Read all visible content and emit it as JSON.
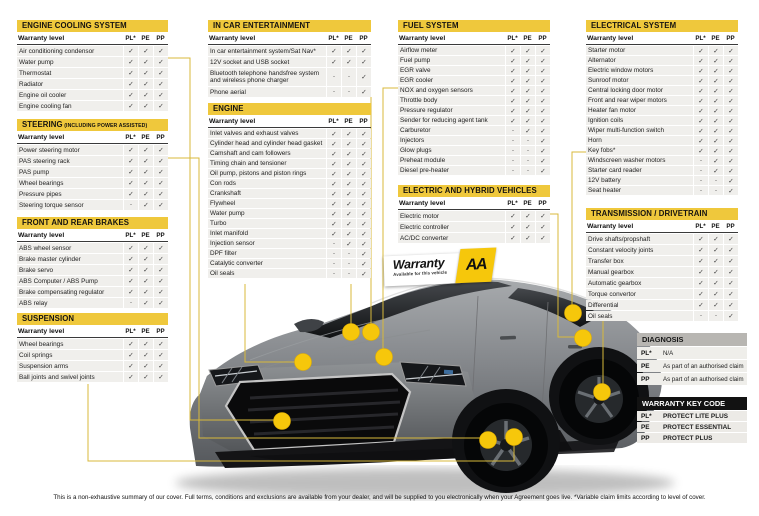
{
  "colors": {
    "accent_yellow": "#EFC83C",
    "dot_yellow": "#F6C70B",
    "line_yellow": "#D8B93B",
    "diagnosis_header": "#B8B6B2",
    "keycode_header": "#121212",
    "row_bg": "#F0EFEC"
  },
  "col_header": "Warranty level",
  "columns": [
    "PL*",
    "PE",
    "PP"
  ],
  "tables": [
    {
      "id": "engine-cooling-system",
      "title": "ENGINE COOLING SYSTEM",
      "rows": [
        {
          "label": "Air conditioning condensor",
          "marks": [
            "✓",
            "✓",
            "✓"
          ]
        },
        {
          "label": "Water pump",
          "marks": [
            "✓",
            "✓",
            "✓"
          ]
        },
        {
          "label": "Thermostat",
          "marks": [
            "✓",
            "✓",
            "✓"
          ]
        },
        {
          "label": "Radiator",
          "marks": [
            "✓",
            "✓",
            "✓"
          ]
        },
        {
          "label": "Engine oil cooler",
          "marks": [
            "✓",
            "✓",
            "✓"
          ]
        },
        {
          "label": "Engine cooling fan",
          "marks": [
            "✓",
            "✓",
            "✓"
          ]
        }
      ]
    },
    {
      "id": "steering",
      "title": "STEERING",
      "suffix": "(INCLUDING POWER ASSISTED)",
      "rows": [
        {
          "label": "Power steering motor",
          "marks": [
            "✓",
            "✓",
            "✓"
          ]
        },
        {
          "label": "PAS steering rack",
          "marks": [
            "✓",
            "✓",
            "✓"
          ]
        },
        {
          "label": "PAS pump",
          "marks": [
            "✓",
            "✓",
            "✓"
          ]
        },
        {
          "label": "Wheel bearings",
          "marks": [
            "✓",
            "✓",
            "✓"
          ]
        },
        {
          "label": "Pressure pipes",
          "marks": [
            "✓",
            "✓",
            "✓"
          ]
        },
        {
          "label": "Steering torque sensor",
          "marks": [
            "-",
            "✓",
            "✓"
          ]
        }
      ]
    },
    {
      "id": "front-and-rear-brakes",
      "title": "FRONT AND REAR BRAKES",
      "rows": [
        {
          "label": "ABS wheel sensor",
          "marks": [
            "✓",
            "✓",
            "✓"
          ]
        },
        {
          "label": "Brake master cylinder",
          "marks": [
            "✓",
            "✓",
            "✓"
          ]
        },
        {
          "label": "Brake servo",
          "marks": [
            "✓",
            "✓",
            "✓"
          ]
        },
        {
          "label": "ABS Computer / ABS Pump",
          "marks": [
            "✓",
            "✓",
            "✓"
          ]
        },
        {
          "label": "Brake compensating regulator",
          "marks": [
            "✓",
            "✓",
            "✓"
          ]
        },
        {
          "label": "ABS relay",
          "marks": [
            "-",
            "✓",
            "✓"
          ]
        }
      ]
    },
    {
      "id": "suspension",
      "title": "SUSPENSION",
      "rows": [
        {
          "label": "Wheel bearings",
          "marks": [
            "✓",
            "✓",
            "✓"
          ]
        },
        {
          "label": "Coil springs",
          "marks": [
            "✓",
            "✓",
            "✓"
          ]
        },
        {
          "label": "Suspension arms",
          "marks": [
            "✓",
            "✓",
            "✓"
          ]
        },
        {
          "label": "Ball joints and swivel joints",
          "marks": [
            "✓",
            "✓",
            "✓"
          ]
        }
      ]
    },
    {
      "id": "in-car-entertainment",
      "title": "IN CAR ENTERTAINMENT",
      "rows": [
        {
          "label": "In car entertainment system/Sat Nav*",
          "marks": [
            "✓",
            "✓",
            "✓"
          ]
        },
        {
          "label": "12V socket and USB socket",
          "marks": [
            "✓",
            "✓",
            "✓"
          ]
        },
        {
          "label": "Bluetooth telephone handsfree system and wireless phone charger",
          "marks": [
            "-",
            "-",
            "✓"
          ]
        },
        {
          "label": "Phone aerial",
          "marks": [
            "-",
            "-",
            "✓"
          ]
        }
      ]
    },
    {
      "id": "engine",
      "title": "ENGINE",
      "rows": [
        {
          "label": "Inlet valves and exhaust valves",
          "marks": [
            "✓",
            "✓",
            "✓"
          ]
        },
        {
          "label": "Cylinder head and cylinder head gasket",
          "marks": [
            "✓",
            "✓",
            "✓"
          ]
        },
        {
          "label": "Camshaft and cam followers",
          "marks": [
            "✓",
            "✓",
            "✓"
          ]
        },
        {
          "label": "Timing chain and tensioner",
          "marks": [
            "✓",
            "✓",
            "✓"
          ]
        },
        {
          "label": "Oil pump, pistons and piston rings",
          "marks": [
            "✓",
            "✓",
            "✓"
          ]
        },
        {
          "label": "Con rods",
          "marks": [
            "✓",
            "✓",
            "✓"
          ]
        },
        {
          "label": "Crankshaft",
          "marks": [
            "✓",
            "✓",
            "✓"
          ]
        },
        {
          "label": "Flywheel",
          "marks": [
            "✓",
            "✓",
            "✓"
          ]
        },
        {
          "label": "Water pump",
          "marks": [
            "✓",
            "✓",
            "✓"
          ]
        },
        {
          "label": "Turbo",
          "marks": [
            "✓",
            "✓",
            "✓"
          ]
        },
        {
          "label": "Inlet manifold",
          "marks": [
            "✓",
            "✓",
            "✓"
          ]
        },
        {
          "label": "Injection sensor",
          "marks": [
            "-",
            "✓",
            "✓"
          ]
        },
        {
          "label": "DPF filter",
          "marks": [
            "-",
            "-",
            "✓"
          ]
        },
        {
          "label": "Catalytic converter",
          "marks": [
            "-",
            "-",
            "✓"
          ]
        },
        {
          "label": "Oil seals",
          "marks": [
            "-",
            "-",
            "✓"
          ]
        }
      ]
    },
    {
      "id": "fuel-system",
      "title": "FUEL SYSTEM",
      "rows": [
        {
          "label": "Airflow meter",
          "marks": [
            "✓",
            "✓",
            "✓"
          ]
        },
        {
          "label": "Fuel pump",
          "marks": [
            "✓",
            "✓",
            "✓"
          ]
        },
        {
          "label": "EGR valve",
          "marks": [
            "✓",
            "✓",
            "✓"
          ]
        },
        {
          "label": "EGR cooler",
          "marks": [
            "✓",
            "✓",
            "✓"
          ]
        },
        {
          "label": "NOX and oxygen sensors",
          "marks": [
            "✓",
            "✓",
            "✓"
          ]
        },
        {
          "label": "Throttle body",
          "marks": [
            "✓",
            "✓",
            "✓"
          ]
        },
        {
          "label": "Pressure regulator",
          "marks": [
            "✓",
            "✓",
            "✓"
          ]
        },
        {
          "label": "Sender for reducing agent tank",
          "marks": [
            "✓",
            "✓",
            "✓"
          ]
        },
        {
          "label": "Carburetor",
          "marks": [
            "-",
            "✓",
            "✓"
          ]
        },
        {
          "label": "Injectors",
          "marks": [
            "-",
            "-",
            "✓"
          ]
        },
        {
          "label": "Glow plugs",
          "marks": [
            "-",
            "-",
            "✓"
          ]
        },
        {
          "label": "Preheat module",
          "marks": [
            "-",
            "-",
            "✓"
          ]
        },
        {
          "label": "Diesel pre-heater",
          "marks": [
            "-",
            "-",
            "✓"
          ]
        }
      ]
    },
    {
      "id": "electric-and-hybrid-vehicles",
      "title": "ELECTRIC AND HYBRID VEHICLES",
      "rows": [
        {
          "label": "Electric motor",
          "marks": [
            "✓",
            "✓",
            "✓"
          ]
        },
        {
          "label": "Electric controller",
          "marks": [
            "✓",
            "✓",
            "✓"
          ]
        },
        {
          "label": "AC/DC converter",
          "marks": [
            "✓",
            "✓",
            "✓"
          ]
        }
      ]
    },
    {
      "id": "electrical-system",
      "title": "ELECTRICAL SYSTEM",
      "rows": [
        {
          "label": "Starter motor",
          "marks": [
            "✓",
            "✓",
            "✓"
          ]
        },
        {
          "label": "Alternator",
          "marks": [
            "✓",
            "✓",
            "✓"
          ]
        },
        {
          "label": "Electric window motors",
          "marks": [
            "✓",
            "✓",
            "✓"
          ]
        },
        {
          "label": "Sunroof motor",
          "marks": [
            "✓",
            "✓",
            "✓"
          ]
        },
        {
          "label": "Central locking door motor",
          "marks": [
            "✓",
            "✓",
            "✓"
          ]
        },
        {
          "label": "Front and rear wiper motors",
          "marks": [
            "✓",
            "✓",
            "✓"
          ]
        },
        {
          "label": "Heater fan motor",
          "marks": [
            "✓",
            "✓",
            "✓"
          ]
        },
        {
          "label": "Ignition coils",
          "marks": [
            "✓",
            "✓",
            "✓"
          ]
        },
        {
          "label": "Wiper multi-function switch",
          "marks": [
            "✓",
            "✓",
            "✓"
          ]
        },
        {
          "label": "Horn",
          "marks": [
            "✓",
            "✓",
            "✓"
          ]
        },
        {
          "label": "Key fobs*",
          "marks": [
            "✓",
            "✓",
            "✓"
          ]
        },
        {
          "label": "Windscreen washer motors",
          "marks": [
            "-",
            "✓",
            "✓"
          ]
        },
        {
          "label": "Starter card reader",
          "marks": [
            "-",
            "✓",
            "✓"
          ]
        },
        {
          "label": "12V battery",
          "marks": [
            "-",
            "-",
            "✓"
          ]
        },
        {
          "label": "Seat heater",
          "marks": [
            "-",
            "-",
            "✓"
          ]
        }
      ]
    },
    {
      "id": "transmission-drivetrain",
      "title": "TRANSMISSION / DRIVETRAIN",
      "rows": [
        {
          "label": "Drive shafts/propshaft",
          "marks": [
            "✓",
            "✓",
            "✓"
          ]
        },
        {
          "label": "Constant velocity joints",
          "marks": [
            "✓",
            "✓",
            "✓"
          ]
        },
        {
          "label": "Transfer box",
          "marks": [
            "✓",
            "✓",
            "✓"
          ]
        },
        {
          "label": "Manual gearbox",
          "marks": [
            "✓",
            "✓",
            "✓"
          ]
        },
        {
          "label": "Automatic gearbox",
          "marks": [
            "✓",
            "✓",
            "✓"
          ]
        },
        {
          "label": "Torque convertor",
          "marks": [
            "✓",
            "✓",
            "✓"
          ]
        },
        {
          "label": "Differential",
          "marks": [
            "✓",
            "✓",
            "✓"
          ]
        },
        {
          "label": "Oil seals",
          "marks": [
            "-",
            "-",
            "✓"
          ]
        }
      ]
    }
  ],
  "diagnosis": {
    "title": "DIAGNOSIS",
    "rows": [
      {
        "code": "PL*",
        "desc": "N/A"
      },
      {
        "code": "PE",
        "desc": "As part of an authorised claim"
      },
      {
        "code": "PP",
        "desc": "As part of an authorised claim"
      }
    ]
  },
  "keycode": {
    "title": "WARRANTY KEY CODE",
    "rows": [
      {
        "code": "PL*",
        "desc": "PROTECT LITE PLUS"
      },
      {
        "code": "PE",
        "desc": "PROTECT ESSENTIAL"
      },
      {
        "code": "PP",
        "desc": "PROTECT PLUS"
      }
    ]
  },
  "badge": {
    "title": "Warranty",
    "subtitle": "Available for this vehicle",
    "logo": "AA"
  },
  "footer": "This is a non-exhaustive summary of our cover. Full terms, conditions and exclusions are available from your dealer, and will be supplied to you electronically when your Agreement goes live. *Variable claim limits according to level of cover."
}
